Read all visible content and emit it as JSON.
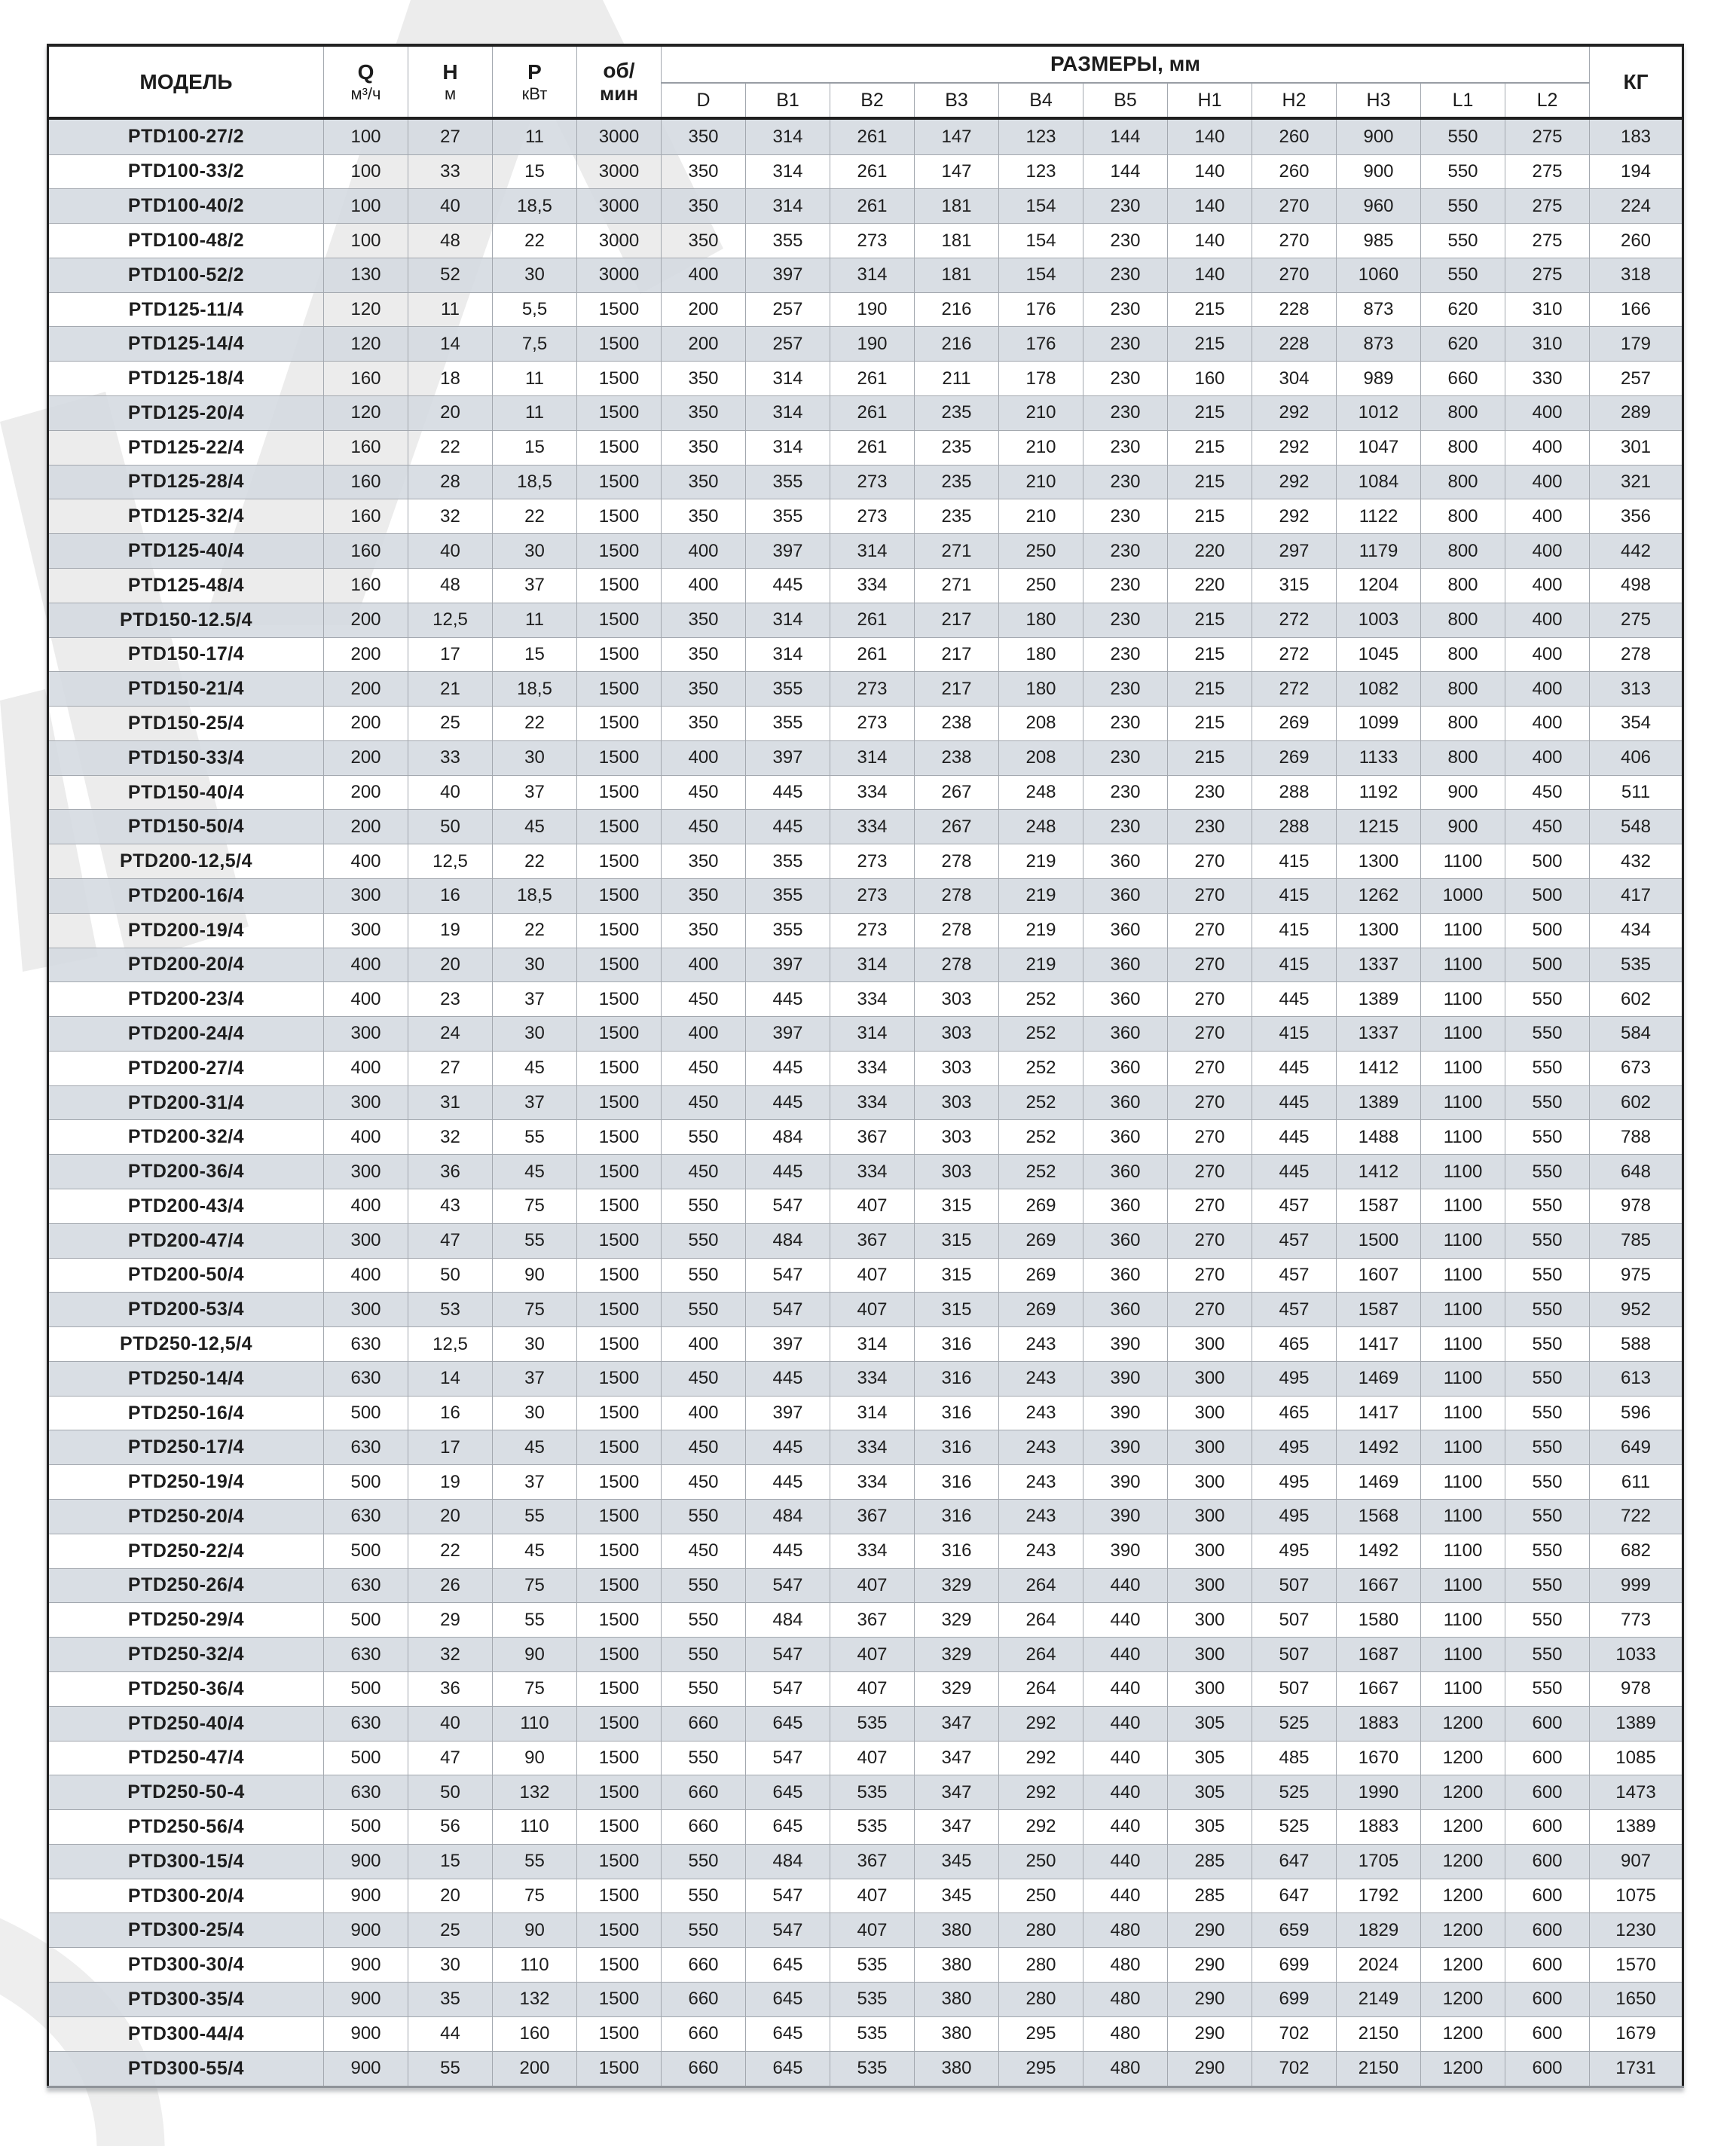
{
  "colors": {
    "row_shade": "#d4d9e0",
    "border_dark": "#1f1f1f",
    "border_light": "#a3a8af"
  },
  "table": {
    "header": {
      "model": "МОДЕЛЬ",
      "q_title": "Q",
      "q_unit": "м³/ч",
      "h_title": "Н",
      "h_unit": "м",
      "p_title": "Р",
      "p_unit": "кВт",
      "rpm_line1": "об/",
      "rpm_line2": "мин",
      "dims_group": "РАЗМЕРЫ, мм",
      "dims": [
        "D",
        "B1",
        "B2",
        "B3",
        "B4",
        "B5",
        "H1",
        "H2",
        "H3",
        "L1",
        "L2"
      ],
      "kg": "КГ"
    },
    "rows": [
      [
        "PTD100-27/2",
        "100",
        "27",
        "11",
        "3000",
        "350",
        "314",
        "261",
        "147",
        "123",
        "144",
        "140",
        "260",
        "900",
        "550",
        "275",
        "183"
      ],
      [
        "PTD100-33/2",
        "100",
        "33",
        "15",
        "3000",
        "350",
        "314",
        "261",
        "147",
        "123",
        "144",
        "140",
        "260",
        "900",
        "550",
        "275",
        "194"
      ],
      [
        "PTD100-40/2",
        "100",
        "40",
        "18,5",
        "3000",
        "350",
        "314",
        "261",
        "181",
        "154",
        "230",
        "140",
        "270",
        "960",
        "550",
        "275",
        "224"
      ],
      [
        "PTD100-48/2",
        "100",
        "48",
        "22",
        "3000",
        "350",
        "355",
        "273",
        "181",
        "154",
        "230",
        "140",
        "270",
        "985",
        "550",
        "275",
        "260"
      ],
      [
        "PTD100-52/2",
        "130",
        "52",
        "30",
        "3000",
        "400",
        "397",
        "314",
        "181",
        "154",
        "230",
        "140",
        "270",
        "1060",
        "550",
        "275",
        "318"
      ],
      [
        "PTD125-11/4",
        "120",
        "11",
        "5,5",
        "1500",
        "200",
        "257",
        "190",
        "216",
        "176",
        "230",
        "215",
        "228",
        "873",
        "620",
        "310",
        "166"
      ],
      [
        "PTD125-14/4",
        "120",
        "14",
        "7,5",
        "1500",
        "200",
        "257",
        "190",
        "216",
        "176",
        "230",
        "215",
        "228",
        "873",
        "620",
        "310",
        "179"
      ],
      [
        "PTD125-18/4",
        "160",
        "18",
        "11",
        "1500",
        "350",
        "314",
        "261",
        "211",
        "178",
        "230",
        "160",
        "304",
        "989",
        "660",
        "330",
        "257"
      ],
      [
        "PTD125-20/4",
        "120",
        "20",
        "11",
        "1500",
        "350",
        "314",
        "261",
        "235",
        "210",
        "230",
        "215",
        "292",
        "1012",
        "800",
        "400",
        "289"
      ],
      [
        "PTD125-22/4",
        "160",
        "22",
        "15",
        "1500",
        "350",
        "314",
        "261",
        "235",
        "210",
        "230",
        "215",
        "292",
        "1047",
        "800",
        "400",
        "301"
      ],
      [
        "PTD125-28/4",
        "160",
        "28",
        "18,5",
        "1500",
        "350",
        "355",
        "273",
        "235",
        "210",
        "230",
        "215",
        "292",
        "1084",
        "800",
        "400",
        "321"
      ],
      [
        "PTD125-32/4",
        "160",
        "32",
        "22",
        "1500",
        "350",
        "355",
        "273",
        "235",
        "210",
        "230",
        "215",
        "292",
        "1122",
        "800",
        "400",
        "356"
      ],
      [
        "PTD125-40/4",
        "160",
        "40",
        "30",
        "1500",
        "400",
        "397",
        "314",
        "271",
        "250",
        "230",
        "220",
        "297",
        "1179",
        "800",
        "400",
        "442"
      ],
      [
        "PTD125-48/4",
        "160",
        "48",
        "37",
        "1500",
        "400",
        "445",
        "334",
        "271",
        "250",
        "230",
        "220",
        "315",
        "1204",
        "800",
        "400",
        "498"
      ],
      [
        "PTD150-12.5/4",
        "200",
        "12,5",
        "11",
        "1500",
        "350",
        "314",
        "261",
        "217",
        "180",
        "230",
        "215",
        "272",
        "1003",
        "800",
        "400",
        "275"
      ],
      [
        "PTD150-17/4",
        "200",
        "17",
        "15",
        "1500",
        "350",
        "314",
        "261",
        "217",
        "180",
        "230",
        "215",
        "272",
        "1045",
        "800",
        "400",
        "278"
      ],
      [
        "PTD150-21/4",
        "200",
        "21",
        "18,5",
        "1500",
        "350",
        "355",
        "273",
        "217",
        "180",
        "230",
        "215",
        "272",
        "1082",
        "800",
        "400",
        "313"
      ],
      [
        "PTD150-25/4",
        "200",
        "25",
        "22",
        "1500",
        "350",
        "355",
        "273",
        "238",
        "208",
        "230",
        "215",
        "269",
        "1099",
        "800",
        "400",
        "354"
      ],
      [
        "PTD150-33/4",
        "200",
        "33",
        "30",
        "1500",
        "400",
        "397",
        "314",
        "238",
        "208",
        "230",
        "215",
        "269",
        "1133",
        "800",
        "400",
        "406"
      ],
      [
        "PTD150-40/4",
        "200",
        "40",
        "37",
        "1500",
        "450",
        "445",
        "334",
        "267",
        "248",
        "230",
        "230",
        "288",
        "1192",
        "900",
        "450",
        "511"
      ],
      [
        "PTD150-50/4",
        "200",
        "50",
        "45",
        "1500",
        "450",
        "445",
        "334",
        "267",
        "248",
        "230",
        "230",
        "288",
        "1215",
        "900",
        "450",
        "548"
      ],
      [
        "PTD200-12,5/4",
        "400",
        "12,5",
        "22",
        "1500",
        "350",
        "355",
        "273",
        "278",
        "219",
        "360",
        "270",
        "415",
        "1300",
        "1100",
        "500",
        "432"
      ],
      [
        "PTD200-16/4",
        "300",
        "16",
        "18,5",
        "1500",
        "350",
        "355",
        "273",
        "278",
        "219",
        "360",
        "270",
        "415",
        "1262",
        "1000",
        "500",
        "417"
      ],
      [
        "PTD200-19/4",
        "300",
        "19",
        "22",
        "1500",
        "350",
        "355",
        "273",
        "278",
        "219",
        "360",
        "270",
        "415",
        "1300",
        "1100",
        "500",
        "434"
      ],
      [
        "PTD200-20/4",
        "400",
        "20",
        "30",
        "1500",
        "400",
        "397",
        "314",
        "278",
        "219",
        "360",
        "270",
        "415",
        "1337",
        "1100",
        "500",
        "535"
      ],
      [
        "PTD200-23/4",
        "400",
        "23",
        "37",
        "1500",
        "450",
        "445",
        "334",
        "303",
        "252",
        "360",
        "270",
        "445",
        "1389",
        "1100",
        "550",
        "602"
      ],
      [
        "PTD200-24/4",
        "300",
        "24",
        "30",
        "1500",
        "400",
        "397",
        "314",
        "303",
        "252",
        "360",
        "270",
        "415",
        "1337",
        "1100",
        "550",
        "584"
      ],
      [
        "PTD200-27/4",
        "400",
        "27",
        "45",
        "1500",
        "450",
        "445",
        "334",
        "303",
        "252",
        "360",
        "270",
        "445",
        "1412",
        "1100",
        "550",
        "673"
      ],
      [
        "PTD200-31/4",
        "300",
        "31",
        "37",
        "1500",
        "450",
        "445",
        "334",
        "303",
        "252",
        "360",
        "270",
        "445",
        "1389",
        "1100",
        "550",
        "602"
      ],
      [
        "PTD200-32/4",
        "400",
        "32",
        "55",
        "1500",
        "550",
        "484",
        "367",
        "303",
        "252",
        "360",
        "270",
        "445",
        "1488",
        "1100",
        "550",
        "788"
      ],
      [
        "PTD200-36/4",
        "300",
        "36",
        "45",
        "1500",
        "450",
        "445",
        "334",
        "303",
        "252",
        "360",
        "270",
        "445",
        "1412",
        "1100",
        "550",
        "648"
      ],
      [
        "PTD200-43/4",
        "400",
        "43",
        "75",
        "1500",
        "550",
        "547",
        "407",
        "315",
        "269",
        "360",
        "270",
        "457",
        "1587",
        "1100",
        "550",
        "978"
      ],
      [
        "PTD200-47/4",
        "300",
        "47",
        "55",
        "1500",
        "550",
        "484",
        "367",
        "315",
        "269",
        "360",
        "270",
        "457",
        "1500",
        "1100",
        "550",
        "785"
      ],
      [
        "PTD200-50/4",
        "400",
        "50",
        "90",
        "1500",
        "550",
        "547",
        "407",
        "315",
        "269",
        "360",
        "270",
        "457",
        "1607",
        "1100",
        "550",
        "975"
      ],
      [
        "PTD200-53/4",
        "300",
        "53",
        "75",
        "1500",
        "550",
        "547",
        "407",
        "315",
        "269",
        "360",
        "270",
        "457",
        "1587",
        "1100",
        "550",
        "952"
      ],
      [
        "PTD250-12,5/4",
        "630",
        "12,5",
        "30",
        "1500",
        "400",
        "397",
        "314",
        "316",
        "243",
        "390",
        "300",
        "465",
        "1417",
        "1100",
        "550",
        "588"
      ],
      [
        "PTD250-14/4",
        "630",
        "14",
        "37",
        "1500",
        "450",
        "445",
        "334",
        "316",
        "243",
        "390",
        "300",
        "495",
        "1469",
        "1100",
        "550",
        "613"
      ],
      [
        "PTD250-16/4",
        "500",
        "16",
        "30",
        "1500",
        "400",
        "397",
        "314",
        "316",
        "243",
        "390",
        "300",
        "465",
        "1417",
        "1100",
        "550",
        "596"
      ],
      [
        "PTD250-17/4",
        "630",
        "17",
        "45",
        "1500",
        "450",
        "445",
        "334",
        "316",
        "243",
        "390",
        "300",
        "495",
        "1492",
        "1100",
        "550",
        "649"
      ],
      [
        "PTD250-19/4",
        "500",
        "19",
        "37",
        "1500",
        "450",
        "445",
        "334",
        "316",
        "243",
        "390",
        "300",
        "495",
        "1469",
        "1100",
        "550",
        "611"
      ],
      [
        "PTD250-20/4",
        "630",
        "20",
        "55",
        "1500",
        "550",
        "484",
        "367",
        "316",
        "243",
        "390",
        "300",
        "495",
        "1568",
        "1100",
        "550",
        "722"
      ],
      [
        "PTD250-22/4",
        "500",
        "22",
        "45",
        "1500",
        "450",
        "445",
        "334",
        "316",
        "243",
        "390",
        "300",
        "495",
        "1492",
        "1100",
        "550",
        "682"
      ],
      [
        "PTD250-26/4",
        "630",
        "26",
        "75",
        "1500",
        "550",
        "547",
        "407",
        "329",
        "264",
        "440",
        "300",
        "507",
        "1667",
        "1100",
        "550",
        "999"
      ],
      [
        "PTD250-29/4",
        "500",
        "29",
        "55",
        "1500",
        "550",
        "484",
        "367",
        "329",
        "264",
        "440",
        "300",
        "507",
        "1580",
        "1100",
        "550",
        "773"
      ],
      [
        "PTD250-32/4",
        "630",
        "32",
        "90",
        "1500",
        "550",
        "547",
        "407",
        "329",
        "264",
        "440",
        "300",
        "507",
        "1687",
        "1100",
        "550",
        "1033"
      ],
      [
        "PTD250-36/4",
        "500",
        "36",
        "75",
        "1500",
        "550",
        "547",
        "407",
        "329",
        "264",
        "440",
        "300",
        "507",
        "1667",
        "1100",
        "550",
        "978"
      ],
      [
        "PTD250-40/4",
        "630",
        "40",
        "110",
        "1500",
        "660",
        "645",
        "535",
        "347",
        "292",
        "440",
        "305",
        "525",
        "1883",
        "1200",
        "600",
        "1389"
      ],
      [
        "PTD250-47/4",
        "500",
        "47",
        "90",
        "1500",
        "550",
        "547",
        "407",
        "347",
        "292",
        "440",
        "305",
        "485",
        "1670",
        "1200",
        "600",
        "1085"
      ],
      [
        "PTD250-50-4",
        "630",
        "50",
        "132",
        "1500",
        "660",
        "645",
        "535",
        "347",
        "292",
        "440",
        "305",
        "525",
        "1990",
        "1200",
        "600",
        "1473"
      ],
      [
        "PTD250-56/4",
        "500",
        "56",
        "110",
        "1500",
        "660",
        "645",
        "535",
        "347",
        "292",
        "440",
        "305",
        "525",
        "1883",
        "1200",
        "600",
        "1389"
      ],
      [
        "PTD300-15/4",
        "900",
        "15",
        "55",
        "1500",
        "550",
        "484",
        "367",
        "345",
        "250",
        "440",
        "285",
        "647",
        "1705",
        "1200",
        "600",
        "907"
      ],
      [
        "PTD300-20/4",
        "900",
        "20",
        "75",
        "1500",
        "550",
        "547",
        "407",
        "345",
        "250",
        "440",
        "285",
        "647",
        "1792",
        "1200",
        "600",
        "1075"
      ],
      [
        "PTD300-25/4",
        "900",
        "25",
        "90",
        "1500",
        "550",
        "547",
        "407",
        "380",
        "280",
        "480",
        "290",
        "659",
        "1829",
        "1200",
        "600",
        "1230"
      ],
      [
        "PTD300-30/4",
        "900",
        "30",
        "110",
        "1500",
        "660",
        "645",
        "535",
        "380",
        "280",
        "480",
        "290",
        "699",
        "2024",
        "1200",
        "600",
        "1570"
      ],
      [
        "PTD300-35/4",
        "900",
        "35",
        "132",
        "1500",
        "660",
        "645",
        "535",
        "380",
        "280",
        "480",
        "290",
        "699",
        "2149",
        "1200",
        "600",
        "1650"
      ],
      [
        "PTD300-44/4",
        "900",
        "44",
        "160",
        "1500",
        "660",
        "645",
        "535",
        "380",
        "295",
        "480",
        "290",
        "702",
        "2150",
        "1200",
        "600",
        "1679"
      ],
      [
        "PTD300-55/4",
        "900",
        "55",
        "200",
        "1500",
        "660",
        "645",
        "535",
        "380",
        "295",
        "480",
        "290",
        "702",
        "2150",
        "1200",
        "600",
        "1731"
      ]
    ]
  }
}
